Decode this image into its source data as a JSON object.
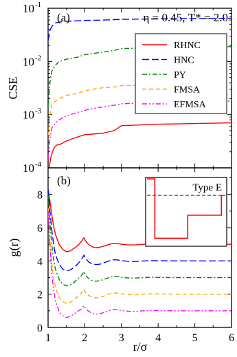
{
  "chart_data": [
    {
      "type": "line",
      "panel_label": "(a)",
      "title": "η = 0.45, T* = 2.0",
      "xlabel": "",
      "ylabel": "CSE",
      "yscale": "log",
      "xlim": [
        1,
        6
      ],
      "ylim": [
        0.0001,
        0.1
      ],
      "xticks": [
        1,
        2,
        3,
        4,
        5,
        6
      ],
      "xtick_labels": [
        "",
        "",
        "",
        "",
        "",
        ""
      ],
      "yticks": [
        0.0001,
        0.001,
        0.01,
        0.1
      ],
      "ytick_labels": [
        {
          "base": "10",
          "exp": "-4"
        },
        {
          "base": "10",
          "exp": "-3"
        },
        {
          "base": "10",
          "exp": "-2"
        },
        {
          "base": "10",
          "exp": "-1"
        }
      ],
      "grid": false,
      "legend_position": "top-right",
      "series": [
        {
          "name": "RHNC",
          "color": "#ff0000",
          "dash": "solid",
          "x": [
            1.03,
            1.07,
            1.12,
            1.18,
            1.25,
            1.35,
            1.5,
            1.7,
            1.9,
            2.0,
            2.2,
            2.5,
            2.8,
            3.0,
            3.5,
            4.0,
            5.0,
            6.0
          ],
          "y": [
            0.0001,
            0.00015,
            0.0002,
            0.00025,
            0.00027,
            0.00028,
            0.00032,
            0.00036,
            0.0004,
            0.00042,
            0.00043,
            0.00045,
            0.0005,
            0.00062,
            0.00064,
            0.00066,
            0.00068,
            0.0007
          ]
        },
        {
          "name": "HNC",
          "color": "#0000ff",
          "dash": "long",
          "x": [
            1.0,
            1.03,
            1.06,
            1.1,
            1.15,
            1.2,
            1.3,
            1.5,
            1.8,
            2.0,
            2.5,
            3.0,
            4.0,
            5.0,
            6.0
          ],
          "y": [
            0.025,
            0.033,
            0.04,
            0.045,
            0.05,
            0.053,
            0.055,
            0.057,
            0.058,
            0.059,
            0.06,
            0.062,
            0.063,
            0.064,
            0.065
          ]
        },
        {
          "name": "PY",
          "color": "#008000",
          "dash": "dashdot",
          "x": [
            1.0,
            1.05,
            1.1,
            1.2,
            1.3,
            1.5,
            1.8,
            2.0,
            2.2,
            2.5,
            2.8,
            3.0,
            4.0,
            5.0,
            6.0
          ],
          "y": [
            0.0015,
            0.004,
            0.0065,
            0.0085,
            0.01,
            0.011,
            0.012,
            0.0135,
            0.014,
            0.015,
            0.016,
            0.0175,
            0.018,
            0.0185,
            0.019
          ]
        },
        {
          "name": "FMSA",
          "color": "#ffa500",
          "dash": "dash",
          "x": [
            1.0,
            1.05,
            1.1,
            1.2,
            1.3,
            1.5,
            1.8,
            2.0,
            2.2,
            2.5,
            2.8,
            3.0,
            4.0,
            5.0,
            6.0
          ],
          "y": [
            0.0004,
            0.001,
            0.0015,
            0.0018,
            0.002,
            0.0023,
            0.0025,
            0.0028,
            0.003,
            0.0032,
            0.0033,
            0.0035,
            0.0036,
            0.0037,
            0.0038
          ]
        },
        {
          "name": "EFMSA",
          "color": "#ff00ff",
          "dash": "dashdotdot",
          "x": [
            1.0,
            1.05,
            1.1,
            1.2,
            1.3,
            1.5,
            1.8,
            2.0,
            2.2,
            2.5,
            2.8,
            3.0,
            4.0,
            5.0,
            6.0
          ],
          "y": [
            0.00015,
            0.00035,
            0.00055,
            0.0007,
            0.0008,
            0.00095,
            0.0011,
            0.0012,
            0.0013,
            0.0014,
            0.0015,
            0.0016,
            0.0017,
            0.00175,
            0.0018
          ]
        }
      ]
    },
    {
      "type": "line",
      "panel_label": "(b)",
      "xlabel": "r/σ",
      "ylabel": "g(r)",
      "xlim": [
        1,
        6
      ],
      "ylim": [
        0,
        9.6
      ],
      "xticks": [
        1,
        2,
        3,
        4,
        5,
        6
      ],
      "xtick_labels": [
        "1",
        "2",
        "3",
        "4",
        "5",
        "6"
      ],
      "yticks": [
        0,
        2,
        4,
        6,
        8
      ],
      "ytick_labels": [
        "0",
        "2",
        "4",
        "6",
        "8"
      ],
      "grid": false,
      "series": [
        {
          "name": "RHNC",
          "color": "#ff0000",
          "dash": "solid",
          "x": [
            1.0,
            1.05,
            1.1,
            1.15,
            1.2,
            1.3,
            1.4,
            1.5,
            1.6,
            1.7,
            1.8,
            1.9,
            1.98,
            2.02,
            2.1,
            2.2,
            2.3,
            2.4,
            2.5,
            2.6,
            2.7,
            2.8,
            2.9,
            3.0,
            3.2,
            3.4,
            3.6,
            3.8,
            4.0,
            4.5,
            5.0,
            5.5,
            6.0
          ],
          "y": [
            8.3,
            7.6,
            6.8,
            6.1,
            5.6,
            5.0,
            4.7,
            4.55,
            4.6,
            4.75,
            4.9,
            5.15,
            5.4,
            5.2,
            5.0,
            4.85,
            4.8,
            4.82,
            4.88,
            4.95,
            5.02,
            5.06,
            5.05,
            5.0,
            4.96,
            4.97,
            5.0,
            5.02,
            5.01,
            5.0,
            5.0,
            5.0,
            5.0
          ]
        },
        {
          "name": "HNC",
          "color": "#0000ff",
          "dash": "long",
          "x": [
            1.0,
            1.05,
            1.1,
            1.15,
            1.2,
            1.3,
            1.4,
            1.5,
            1.6,
            1.7,
            1.8,
            1.9,
            1.98,
            2.02,
            2.1,
            2.2,
            2.3,
            2.4,
            2.5,
            2.6,
            2.7,
            2.8,
            2.9,
            3.0,
            3.2,
            3.4,
            3.6,
            3.8,
            4.0,
            4.5,
            5.0,
            5.5,
            6.0
          ],
          "y": [
            8.3,
            7.0,
            5.9,
            5.0,
            4.4,
            3.8,
            3.5,
            3.4,
            3.45,
            3.6,
            3.8,
            4.05,
            4.35,
            4.15,
            3.95,
            3.82,
            3.78,
            3.8,
            3.87,
            3.95,
            4.03,
            4.07,
            4.06,
            4.02,
            3.97,
            3.97,
            4.0,
            4.02,
            4.01,
            4.0,
            4.0,
            4.0,
            4.0
          ]
        },
        {
          "name": "PY",
          "color": "#008000",
          "dash": "dashdot",
          "x": [
            1.0,
            1.05,
            1.1,
            1.15,
            1.2,
            1.3,
            1.4,
            1.5,
            1.6,
            1.7,
            1.8,
            1.9,
            1.98,
            2.02,
            2.1,
            2.2,
            2.3,
            2.4,
            2.5,
            2.6,
            2.7,
            2.8,
            2.9,
            3.0,
            3.2,
            3.4,
            3.6,
            3.8,
            4.0,
            4.5,
            5.0,
            5.5,
            6.0
          ],
          "y": [
            8.0,
            6.3,
            5.0,
            4.1,
            3.5,
            2.9,
            2.6,
            2.5,
            2.55,
            2.7,
            2.9,
            3.1,
            3.35,
            3.15,
            2.95,
            2.82,
            2.78,
            2.8,
            2.87,
            2.95,
            3.03,
            3.07,
            3.06,
            3.02,
            2.97,
            2.97,
            3.0,
            3.02,
            3.01,
            3.0,
            3.0,
            3.0,
            3.0
          ]
        },
        {
          "name": "FMSA",
          "color": "#ffa500",
          "dash": "dash",
          "x": [
            1.0,
            1.05,
            1.1,
            1.15,
            1.2,
            1.3,
            1.4,
            1.5,
            1.6,
            1.7,
            1.8,
            1.9,
            1.98,
            2.02,
            2.1,
            2.2,
            2.3,
            2.4,
            2.5,
            2.6,
            2.7,
            2.8,
            2.9,
            3.0,
            3.2,
            3.4,
            3.6,
            3.8,
            4.0,
            4.5,
            5.0,
            5.5,
            6.0
          ],
          "y": [
            7.2,
            5.3,
            3.9,
            3.0,
            2.4,
            1.8,
            1.55,
            1.45,
            1.5,
            1.65,
            1.85,
            2.05,
            2.3,
            2.1,
            1.93,
            1.82,
            1.78,
            1.8,
            1.87,
            1.95,
            2.03,
            2.07,
            2.06,
            2.02,
            1.97,
            1.97,
            2.0,
            2.02,
            2.01,
            2.0,
            2.0,
            2.0,
            2.0
          ]
        },
        {
          "name": "EFMSA",
          "color": "#ff00ff",
          "dash": "dashdotdot",
          "x": [
            1.0,
            1.05,
            1.1,
            1.15,
            1.2,
            1.3,
            1.4,
            1.5,
            1.6,
            1.7,
            1.8,
            1.9,
            1.98,
            2.02,
            2.1,
            2.2,
            2.3,
            2.4,
            2.5,
            2.6,
            2.7,
            2.8,
            2.9,
            3.0,
            3.2,
            3.4,
            3.6,
            3.8,
            4.0,
            4.5,
            5.0,
            5.5,
            6.0
          ],
          "y": [
            7.0,
            4.8,
            3.3,
            2.3,
            1.6,
            0.95,
            0.7,
            0.6,
            0.65,
            0.8,
            0.95,
            1.1,
            1.3,
            1.15,
            0.98,
            0.85,
            0.8,
            0.82,
            0.88,
            0.95,
            1.03,
            1.07,
            1.06,
            1.02,
            0.97,
            0.97,
            1.0,
            1.02,
            1.01,
            1.0,
            1.0,
            1.0,
            1.0
          ]
        }
      ]
    }
  ],
  "inset": {
    "label": "Type E",
    "step_x": [
      0.0,
      0.1,
      0.1,
      0.52,
      0.52,
      0.95,
      0.95,
      1.0
    ],
    "step_y": [
      1.0,
      1.0,
      0.1,
      0.1,
      0.45,
      0.45,
      0.75,
      0.75
    ],
    "reference_level": 0.75
  }
}
